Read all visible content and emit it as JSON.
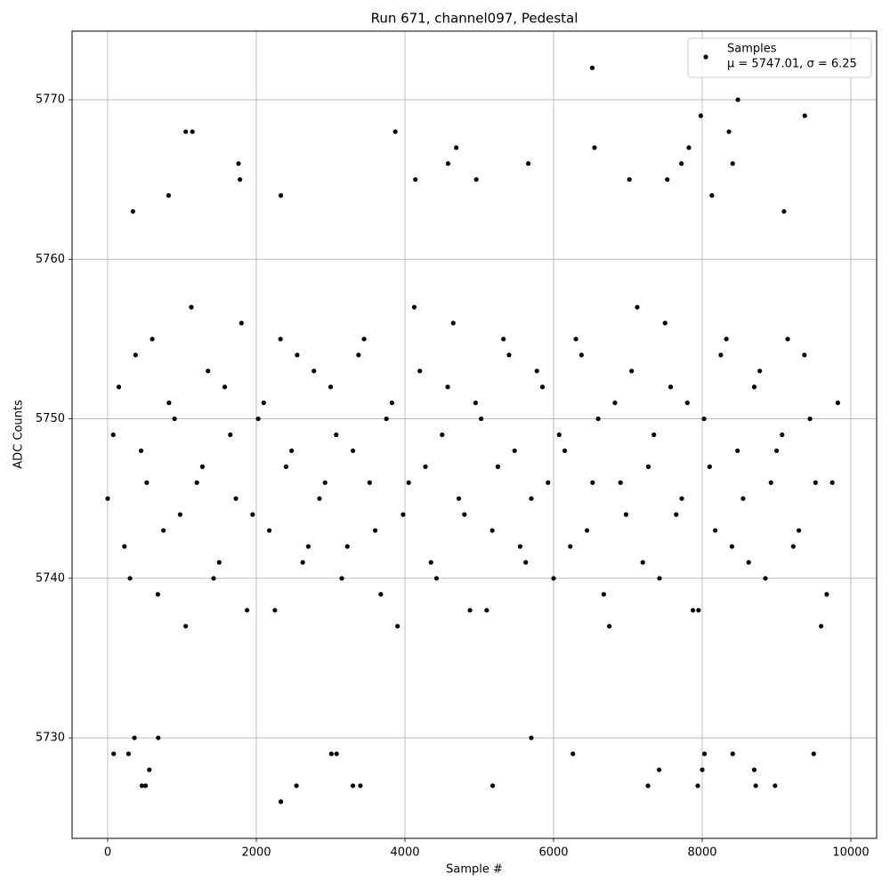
{
  "chart_data": {
    "type": "scatter",
    "title": "Run 671, channel097, Pedestal",
    "xlabel": "Sample #",
    "ylabel": "ADC Counts",
    "xlim": [
      -479,
      10347
    ],
    "ylim": [
      5723.7,
      5774.3
    ],
    "xticks": [
      0,
      2000,
      4000,
      6000,
      8000,
      10000
    ],
    "yticks": [
      5730,
      5740,
      5750,
      5760,
      5770
    ],
    "grid": true,
    "legend": "upper right",
    "annotation": "μ = 5747.01, σ = 6.25",
    "series": [
      {
        "name": "Samples",
        "color": "#000000",
        "x": [
          6520,
          8480,
          7980,
          9380,
          1050,
          1140,
          3870,
          8360,
          1760,
          4580,
          5660,
          8410,
          4690,
          6550,
          7820,
          2330,
          2540,
          460,
          510,
          3300,
          3400,
          5180,
          7270,
          7940,
          8720,
          8980,
          80,
          280,
          6260,
          8410,
          9500,
          3010,
          3080,
          8030,
          5700,
          680,
          360,
          560,
          7420,
          8700,
          8000,
          340,
          820,
          1780,
          2330,
          4140,
          4960,
          7020,
          7530,
          7720,
          8130,
          9100,
          0,
          150,
          300,
          450,
          600,
          750,
          900,
          1050,
          1200,
          1350,
          1500,
          1650,
          1800,
          1950,
          2100,
          2250,
          2400,
          2550,
          2700,
          2850,
          3000,
          3150,
          3300,
          3450,
          3600,
          3750,
          3900,
          4050,
          4200,
          4350,
          4500,
          4650,
          4800,
          4950,
          5100,
          5250,
          5400,
          5550,
          5700,
          5850,
          6000,
          6150,
          6300,
          6450,
          6600,
          6750,
          6900,
          7050,
          7200,
          7350,
          7500,
          7650,
          7800,
          7950,
          8100,
          8250,
          8400,
          8550,
          8700,
          8850,
          9000,
          9150,
          9300,
          9450,
          9600,
          9750,
          75,
          225,
          375,
          525,
          675,
          825,
          975,
          1125,
          1275,
          1425,
          1575,
          1725,
          1875,
          2025,
          2175,
          2325,
          2475,
          2625,
          2775,
          2925,
          3075,
          3225,
          3375,
          3525,
          3675,
          3825,
          3975,
          4125,
          4275,
          4425,
          4575,
          4725,
          4875,
          5025,
          5175,
          5325,
          5475,
          5625,
          5775,
          5925,
          6075,
          6225,
          6375,
          6525,
          6675,
          6825,
          6975,
          7125,
          7275,
          7425,
          7575,
          7725,
          7875,
          8025,
          8175,
          8325,
          8475,
          8625,
          8775,
          8925,
          9075,
          9225,
          9375,
          9525,
          9675,
          9825
        ],
        "values": [
          5772,
          5770,
          5769,
          5769,
          5768,
          5768,
          5768,
          5768,
          5766,
          5766,
          5766,
          5766,
          5767,
          5767,
          5767,
          5726,
          5727,
          5727,
          5727,
          5727,
          5727,
          5727,
          5727,
          5727,
          5727,
          5727,
          5729,
          5729,
          5729,
          5729,
          5729,
          5729,
          5729,
          5729,
          5730,
          5730,
          5730,
          5728,
          5728,
          5728,
          5728,
          5763,
          5764,
          5765,
          5764,
          5765,
          5765,
          5765,
          5765,
          5766,
          5764,
          5763,
          5745,
          5752,
          5740,
          5748,
          5755,
          5743,
          5750,
          5737,
          5746,
          5753,
          5741,
          5749,
          5756,
          5744,
          5751,
          5738,
          5747,
          5754,
          5742,
          5745,
          5752,
          5740,
          5748,
          5755,
          5743,
          5750,
          5737,
          5746,
          5753,
          5741,
          5749,
          5756,
          5744,
          5751,
          5738,
          5747,
          5754,
          5742,
          5745,
          5752,
          5740,
          5748,
          5755,
          5743,
          5750,
          5737,
          5746,
          5753,
          5741,
          5749,
          5756,
          5744,
          5751,
          5738,
          5747,
          5754,
          5742,
          5745,
          5752,
          5740,
          5748,
          5755,
          5743,
          5750,
          5737,
          5746,
          5749,
          5742,
          5754,
          5746,
          5739,
          5751,
          5744,
          5757,
          5747,
          5740,
          5752,
          5745,
          5738,
          5750,
          5743,
          5755,
          5748,
          5741,
          5753,
          5746,
          5749,
          5742,
          5754,
          5746,
          5739,
          5751,
          5744,
          5757,
          5747,
          5740,
          5752,
          5745,
          5738,
          5750,
          5743,
          5755,
          5748,
          5741,
          5753,
          5746,
          5749,
          5742,
          5754,
          5746,
          5739,
          5751,
          5744,
          5757,
          5747,
          5740,
          5752,
          5745,
          5738,
          5750,
          5743,
          5755,
          5748,
          5741,
          5753,
          5746,
          5749,
          5742,
          5754,
          5746,
          5739,
          5751
        ]
      }
    ]
  }
}
